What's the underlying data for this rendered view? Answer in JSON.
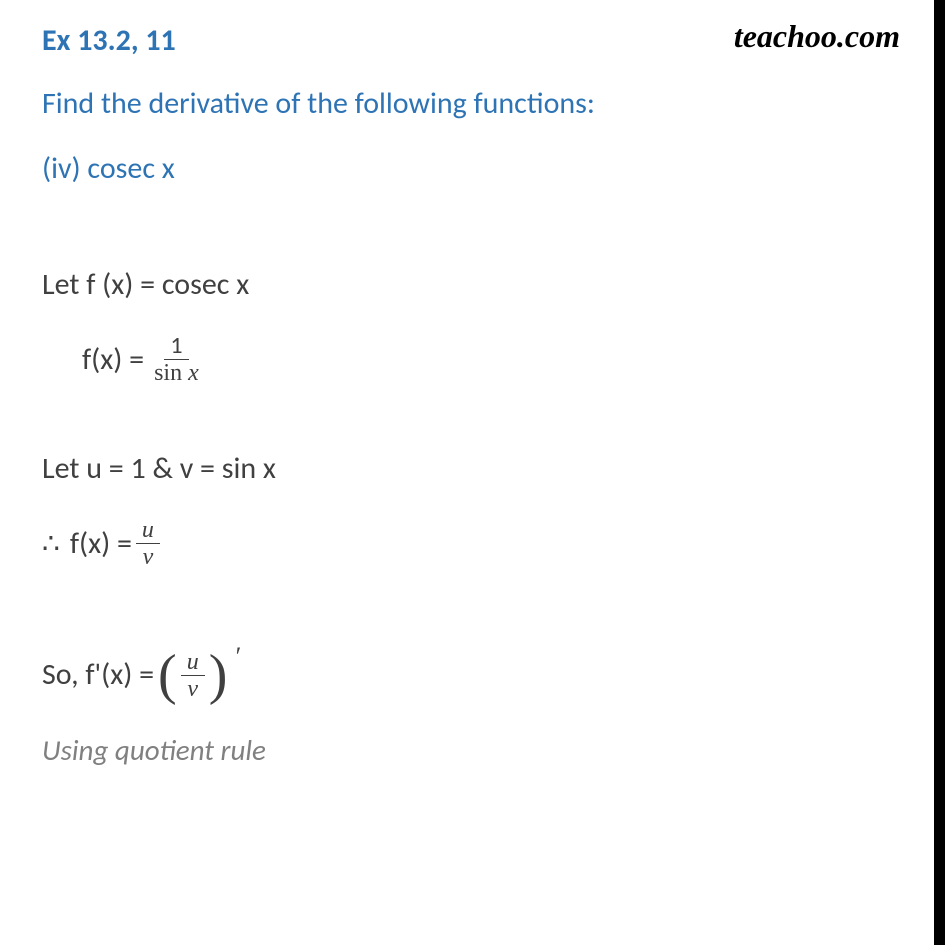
{
  "header": {
    "title": "Ex 13.2, 11",
    "brand": "teachoo.com"
  },
  "question": "Find the derivative of the following functions:",
  "subpart": "(iv) cosec x",
  "steps": {
    "let_fx": "Let f (x) = cosec x",
    "fx_eq": "f(x) = ",
    "frac1_num": "1",
    "frac1_den_sin": "sin ",
    "frac1_den_x": "x",
    "let_uv": "Let u = 1 & v = sin x",
    "therefore": "∴",
    "fx_uv": "f(x) = ",
    "u": "u",
    "v": "v",
    "so_fprime": "So, f'(x) = ",
    "prime": "′",
    "rule": "Using quotient rule"
  },
  "colors": {
    "heading": "#2e74b5",
    "body": "#404040",
    "muted": "#808080",
    "brand": "#000000",
    "bg": "#ffffff"
  }
}
